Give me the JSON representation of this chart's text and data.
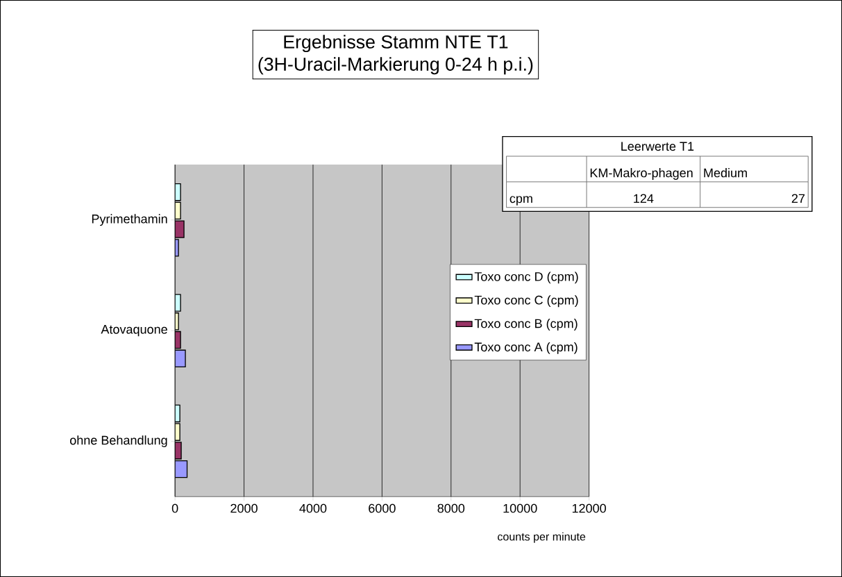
{
  "chart_data": {
    "type": "bar",
    "orientation": "horizontal",
    "title": "Ergebnisse Stamm NTE T1",
    "subtitle": "(3H-Uracil-Markierung 0-24 h p.i.)",
    "xlabel": "counts per minute",
    "categories": [
      "Pyrimethamin",
      "Atovaquone",
      "ohne Behandlung"
    ],
    "series": [
      {
        "name": "Toxo conc A (cpm)",
        "color": "#9999ff",
        "values": [
          100,
          300,
          350
        ]
      },
      {
        "name": "Toxo conc B (cpm)",
        "color": "#993366",
        "values": [
          260,
          160,
          180
        ]
      },
      {
        "name": "Toxo conc C (cpm)",
        "color": "#ffffcc",
        "values": [
          160,
          100,
          140
        ]
      },
      {
        "name": "Toxo conc D (cpm)",
        "color": "#ccffff",
        "values": [
          160,
          160,
          140
        ]
      }
    ],
    "xlim": [
      0,
      12000
    ],
    "xticks": [
      0,
      2000,
      4000,
      6000,
      8000,
      10000,
      12000
    ],
    "grid": "x",
    "legend": "right",
    "annotations": [
      "Leerwerte T1",
      "KM-Makro-phagen",
      "Medium",
      "cpm",
      "124",
      "27"
    ]
  }
}
